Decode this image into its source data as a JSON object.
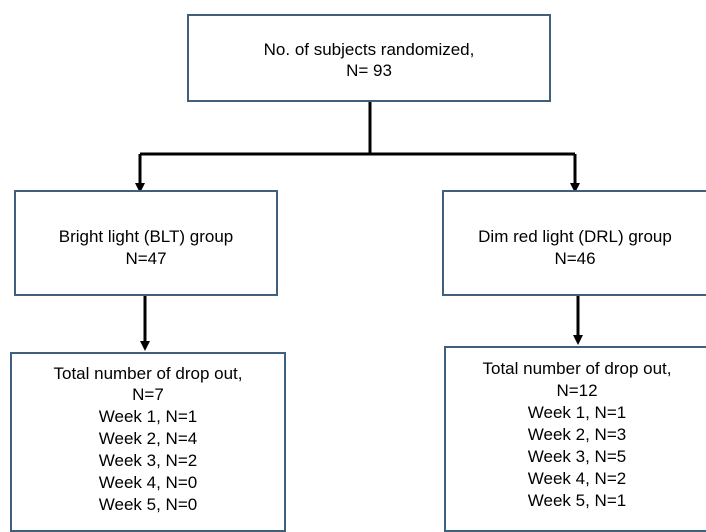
{
  "colors": {
    "box_border": "#3f5f7f",
    "connector": "#000000",
    "text": "#000000",
    "background": "#ffffff"
  },
  "top": {
    "line1": "No. of subjects randomized,",
    "line2": "N= 93"
  },
  "blt_group": {
    "line1": "Bright light (BLT) group",
    "line2": "N=47"
  },
  "drl_group": {
    "line1": "Dim red light (DRL) group",
    "line2": "N=46"
  },
  "blt_dropout": {
    "line1": "Total number of drop out,",
    "line2": "N=7",
    "weeks": [
      "Week 1, N=1",
      "Week 2, N=4",
      "Week 3, N=2",
      "Week 4, N=0",
      "Week 5, N=0"
    ]
  },
  "drl_dropout": {
    "line1": "Total number of drop out,",
    "line2": "N=12",
    "weeks": [
      "Week 1, N=1",
      "Week 2, N=3",
      "Week 3, N=5",
      "Week 4, N=2",
      "Week 5, N=1"
    ]
  }
}
